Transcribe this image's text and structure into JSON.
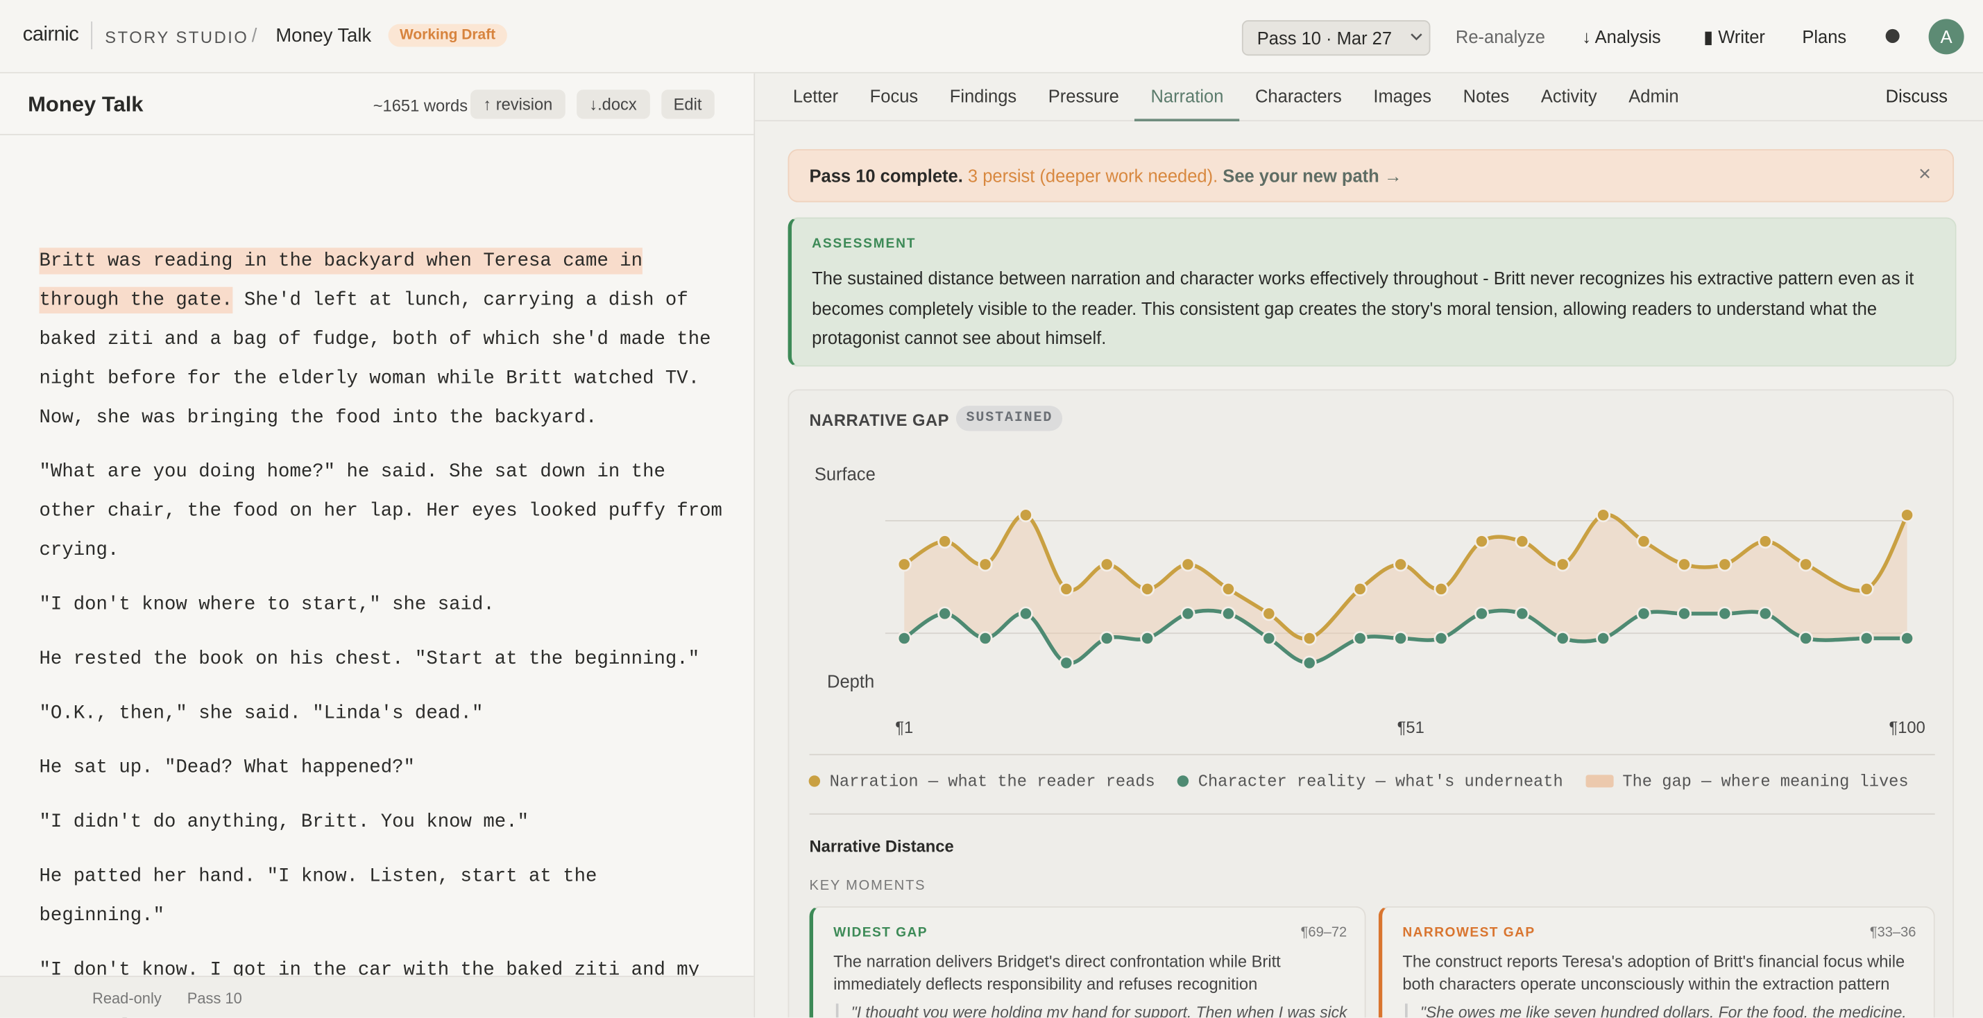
{
  "header": {
    "logo": "cairnic",
    "studio": "STORY STUDIO",
    "separator": "/",
    "story": "Money Talk",
    "status": "Working Draft",
    "pass_select": "Pass 10 · Mar 27",
    "actions": [
      "Re-analyze",
      "↓ Analysis",
      "▮ Writer",
      "Plans"
    ],
    "avatar": "A"
  },
  "editor": {
    "title": "Money Talk",
    "words": "~1651 words",
    "buttons": [
      "↑ revision",
      "↓.docx",
      "Edit"
    ],
    "first_paragraph": {
      "highlight": "Britt was reading in the backyard when Teresa came in through the gate.",
      "text": "She'd left at lunch, carrying a dish of baked ziti and a bag of fudge, both of which she'd made the night before for the elderly woman while Britt watched TV. Now, she was bringing the food into the backyard."
    },
    "paragraphs": [
      "\"What are you doing home?\" he said. She sat down in the other chair, the food on her lap. Her eyes looked puffy from crying.",
      "\"I don't know where to start,\" she said.",
      "He rested the book on his chest. \"Start at the beginning.\"",
      "\"O.K., then,\" she said. \"Linda's dead.\"",
      "He sat up. \"Dead? What happened?\"",
      "\"I didn't do anything, Britt. You know me.\"",
      "He patted her hand. \"I know. Listen, start at the beginning.\"",
      "\"I don't know. I got in the car with the baked ziti and my cleaning stuff. You saw me.\""
    ],
    "footer": [
      "Read-only",
      "Pass 10"
    ]
  },
  "tabs": [
    "Letter",
    "Focus",
    "Findings",
    "Pressure",
    "Narration",
    "Characters",
    "Images",
    "Notes",
    "Activity",
    "Admin"
  ],
  "discuss": "Discuss",
  "banner": {
    "strong": "Pass 10 complete.",
    "warning": "3 persist (deeper work needed).",
    "link": "See your new path →",
    "close": "×"
  },
  "assessment": {
    "label": "ASSESSMENT",
    "text": "The sustained distance between narration and character works effectively throughout - Britt never recognizes his extractive pattern even as it becomes completely visible to the reader. This consistent gap creates the story's moral tension, allowing readers to understand what the protagonist cannot see about himself."
  },
  "chart_data": {
    "type": "line",
    "title": "NARRATIVE GAP",
    "badge": "SUSTAINED",
    "y_top_label": "Surface",
    "y_bottom_label": "Depth",
    "x": [
      1,
      5,
      9,
      13,
      17,
      21,
      25,
      29,
      33,
      37,
      41,
      46,
      50,
      54,
      58,
      62,
      66,
      70,
      74,
      78,
      82,
      86,
      90,
      96,
      100
    ],
    "xlim": [
      1,
      100
    ],
    "xticks": [
      {
        "value": 1,
        "label": "¶1"
      },
      {
        "value": 51,
        "label": "¶51"
      },
      {
        "value": 100,
        "label": "¶100"
      }
    ],
    "ylim": [
      0,
      100
    ],
    "series": [
      {
        "name": "Narration — what the reader reads",
        "color": "#c9a042",
        "values": [
          65,
          79,
          65,
          95,
          50,
          65,
          50,
          65,
          50,
          35,
          20,
          50,
          65,
          50,
          79,
          79,
          65,
          95,
          79,
          65,
          65,
          79,
          65,
          50,
          95
        ]
      },
      {
        "name": "Character reality — what's underneath",
        "color": "#4e8a72",
        "values": [
          20,
          35,
          20,
          35,
          5,
          20,
          20,
          35,
          35,
          20,
          5,
          20,
          20,
          20,
          35,
          35,
          20,
          20,
          35,
          35,
          35,
          35,
          20,
          20,
          20
        ]
      }
    ],
    "gap_label": "The gap — where meaning lives",
    "gap_color": "#ecc9ad"
  },
  "distance": {
    "title": "Narrative Distance",
    "key_moments": "KEY MOMENTS",
    "cards": [
      {
        "label": "WIDEST GAP",
        "range": "¶69–72",
        "text": "The narration delivers Bridget's direct confrontation while Britt immediately deflects responsibility and refuses recognition",
        "quote": "\"I thought you were holding my hand for support. Then when I was sick"
      },
      {
        "label": "NARROWEST GAP",
        "range": "¶33–36",
        "text": "The construct reports Teresa's adoption of Britt's financial focus while both characters operate unconsciously within the extraction pattern",
        "quote": "\"She owes me like seven hundred dollars. For the food, the medicine."
      }
    ]
  }
}
